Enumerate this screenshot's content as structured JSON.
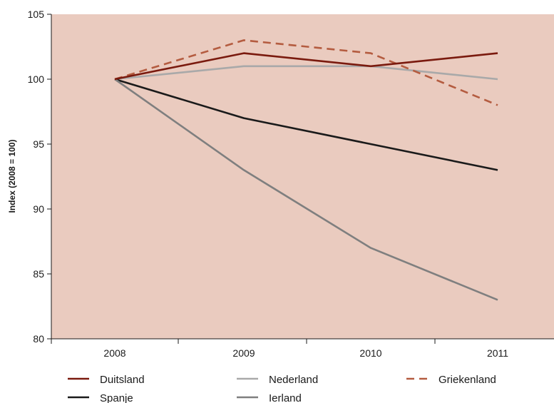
{
  "chart_data": {
    "type": "line",
    "title": "",
    "xlabel": "",
    "ylabel": "Index (2008 = 100)",
    "x": [
      "2008",
      "2009",
      "2010",
      "2011"
    ],
    "ylim": [
      80,
      105
    ],
    "yticks": [
      80,
      85,
      90,
      95,
      100,
      105
    ],
    "grid": false,
    "legend_position": "bottom",
    "plot_background": "#eacbbf",
    "series": [
      {
        "name": "Duitsland",
        "values": [
          100,
          102,
          101,
          102
        ],
        "color": "#7a1a0e",
        "dash": false
      },
      {
        "name": "Nederland",
        "values": [
          100,
          101,
          101,
          100
        ],
        "color": "#a9a9a9",
        "dash": false
      },
      {
        "name": "Griekenland",
        "values": [
          100,
          103,
          102,
          98
        ],
        "color": "#b45c40",
        "dash": true
      },
      {
        "name": "Spanje",
        "values": [
          100,
          97,
          95,
          93
        ],
        "color": "#1a1a1a",
        "dash": false
      },
      {
        "name": "Ierland",
        "values": [
          100,
          93,
          87,
          83
        ],
        "color": "#7f7f7f",
        "dash": false
      }
    ]
  }
}
